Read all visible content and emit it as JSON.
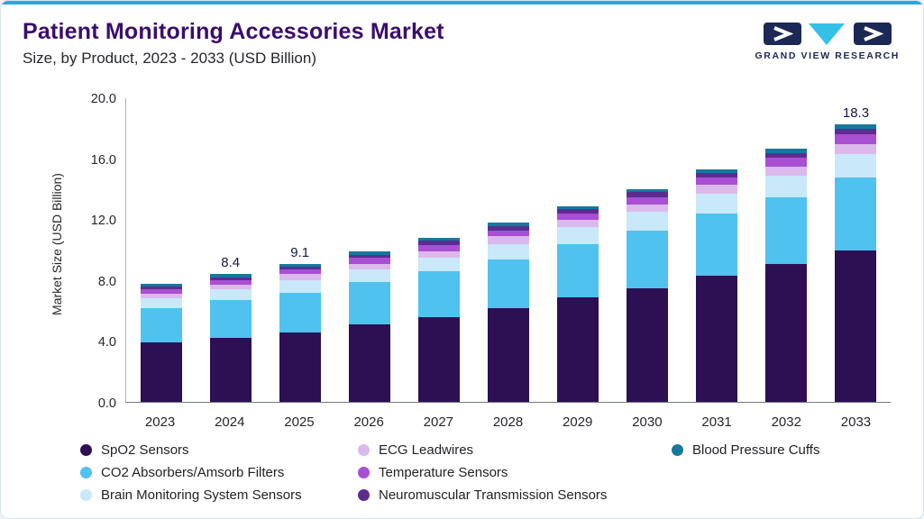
{
  "header": {
    "title": "Patient Monitoring Accessories Market",
    "subtitle": "Size, by Product, 2023 - 2033 (USD Billion)",
    "logo_text": "GRAND VIEW RESEARCH"
  },
  "theme": {
    "topbar_color": "#2fa5dc",
    "title_color": "#3b0c6d",
    "logo_navy": "#1c2957",
    "logo_teal": "#33c1e8",
    "axis_text_color": "#25272b",
    "value_label_color": "#16164a"
  },
  "chart_data": {
    "type": "bar",
    "stacked": true,
    "title": "Patient Monitoring Accessories Market Size, by Product, 2023 - 2033 (USD Billion)",
    "xlabel": "",
    "ylabel": "Market Size (USD Billion)",
    "ylim": [
      0,
      20
    ],
    "yticks": [
      "0.0",
      "4.0",
      "8.0",
      "12.0",
      "16.0",
      "20.0"
    ],
    "grid": false,
    "legend_position": "bottom",
    "categories": [
      "2023",
      "2024",
      "2025",
      "2026",
      "2027",
      "2028",
      "2029",
      "2030",
      "2031",
      "2032",
      "2033"
    ],
    "series": [
      {
        "name": "SpO2 Sensors",
        "color": "#2d0f54",
        "values": [
          3.9,
          4.2,
          4.6,
          5.1,
          5.6,
          6.2,
          6.9,
          7.5,
          8.3,
          9.1,
          10.0
        ]
      },
      {
        "name": "CO2 Absorbers/Amsorb Filters",
        "color": "#4fc2ef",
        "values": [
          2.3,
          2.5,
          2.6,
          2.8,
          3.0,
          3.2,
          3.5,
          3.8,
          4.1,
          4.4,
          4.8
        ]
      },
      {
        "name": "Brain Monitoring System Sensors",
        "color": "#c9e8fa",
        "values": [
          0.6,
          0.7,
          0.8,
          0.8,
          0.9,
          1.0,
          1.1,
          1.2,
          1.3,
          1.4,
          1.5
        ]
      },
      {
        "name": "ECG Leadwires",
        "color": "#dcb9ec",
        "values": [
          0.3,
          0.3,
          0.4,
          0.4,
          0.4,
          0.5,
          0.5,
          0.5,
          0.6,
          0.6,
          0.7
        ]
      },
      {
        "name": "Temperature Sensors",
        "color": "#a84fd4",
        "values": [
          0.3,
          0.3,
          0.3,
          0.4,
          0.4,
          0.4,
          0.4,
          0.5,
          0.5,
          0.6,
          0.6
        ]
      },
      {
        "name": "Neuromuscular Transmission Sensors",
        "color": "#5c2d91",
        "values": [
          0.2,
          0.2,
          0.2,
          0.2,
          0.3,
          0.3,
          0.3,
          0.3,
          0.3,
          0.3,
          0.4
        ]
      },
      {
        "name": "Blood Pressure Cuffs",
        "color": "#17789e",
        "values": [
          0.2,
          0.2,
          0.2,
          0.2,
          0.2,
          0.2,
          0.2,
          0.2,
          0.2,
          0.3,
          0.3
        ]
      }
    ],
    "value_labels": {
      "2024": "8.4",
      "2025": "9.1",
      "2033": "18.3"
    },
    "totals": [
      7.8,
      8.4,
      9.1,
      9.9,
      10.8,
      11.8,
      12.9,
      14.0,
      15.3,
      16.7,
      18.3
    ]
  }
}
